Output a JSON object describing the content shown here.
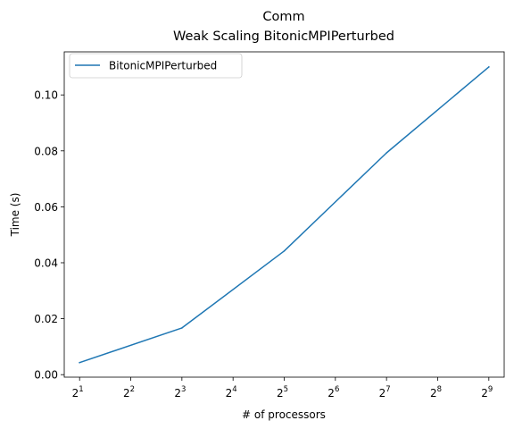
{
  "chart_data": {
    "type": "line",
    "title": "Comm",
    "subtitle": "Weak Scaling BitonicMPIPerturbed",
    "xlabel": "# of processors",
    "ylabel": "Time (s)",
    "x_scale": "log2",
    "x_ticks": [
      {
        "base": "2",
        "exp": "1",
        "value": 2
      },
      {
        "base": "2",
        "exp": "2",
        "value": 4
      },
      {
        "base": "2",
        "exp": "3",
        "value": 8
      },
      {
        "base": "2",
        "exp": "4",
        "value": 16
      },
      {
        "base": "2",
        "exp": "5",
        "value": 32
      },
      {
        "base": "2",
        "exp": "6",
        "value": 64
      },
      {
        "base": "2",
        "exp": "7",
        "value": 128
      },
      {
        "base": "2",
        "exp": "8",
        "value": 256
      },
      {
        "base": "2",
        "exp": "9",
        "value": 512
      }
    ],
    "y_ticks": [
      {
        "label": "0.00",
        "value": 0.0
      },
      {
        "label": "0.02",
        "value": 0.02
      },
      {
        "label": "0.04",
        "value": 0.04
      },
      {
        "label": "0.06",
        "value": 0.06
      },
      {
        "label": "0.08",
        "value": 0.08
      },
      {
        "label": "0.10",
        "value": 0.1
      }
    ],
    "xlim": [
      1.6245,
      630.3
    ],
    "ylim": [
      -0.0009,
      0.1154
    ],
    "grid": false,
    "legend_position": "top-left",
    "series": [
      {
        "name": "BitonicMPIPerturbed",
        "color": "#1f77b4",
        "x": [
          2,
          8,
          32,
          128,
          512
        ],
        "y": [
          0.0043,
          0.0167,
          0.0442,
          0.0793,
          0.11
        ]
      }
    ]
  }
}
